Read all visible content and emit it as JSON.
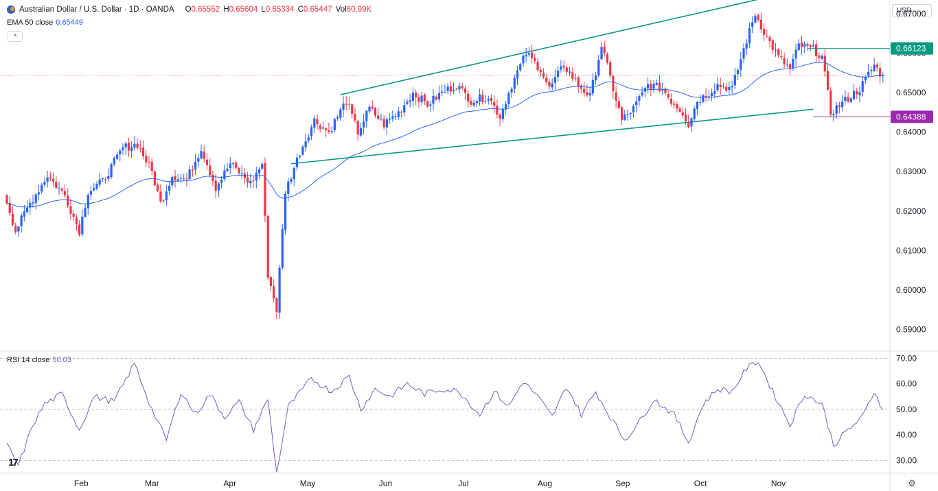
{
  "header": {
    "symbol": "Australian Dollar / U.S. Dollar · 1D · OANDA",
    "open_label": "O",
    "open": "0.65552",
    "high_label": "H",
    "high": "0.65604",
    "low_label": "L",
    "low": "0.65334",
    "close_label": "C",
    "close": "0.65447",
    "vol_label": "Vol",
    "vol": "60.99K"
  },
  "indicators": {
    "ema_label": "EMA 50 close",
    "ema_value": "0.65449",
    "rsi_label": "RSI 14 close",
    "rsi_value": "50.03"
  },
  "controls": {
    "currency": "USD",
    "collapse": "^"
  },
  "colors": {
    "up": "#2962ff",
    "down": "#f23645",
    "ema": "#2962ff",
    "rsi": "#7e57c2",
    "channel": "#089981",
    "resistance_tag": "#089981",
    "support_tag": "#9c27b0"
  },
  "icons": {
    "logo": "tradingview-logo-icon",
    "settings": "gear-icon"
  },
  "tv_logo_text": "17",
  "chart_data": [
    {
      "type": "candlestick",
      "grid": false,
      "price_axis": [
        "0.67000",
        "0.66000",
        "0.65000",
        "0.64000",
        "0.63000",
        "0.62000",
        "0.61000",
        "0.60000",
        "0.59000"
      ],
      "ylim": [
        0.5845,
        0.6735
      ],
      "time_axis": [
        "Feb",
        "Mar",
        "Apr",
        "May",
        "Jun",
        "Jul",
        "Aug",
        "Sep",
        "Oct",
        "Nov"
      ],
      "last_close": 0.65447,
      "resistance": {
        "value": 0.66123,
        "label": "0.66123"
      },
      "support": {
        "value": 0.64388,
        "label": "0.64388"
      },
      "channel": {
        "upper": [
          {
            "x": 115,
            "y": 0.6495
          },
          {
            "x": 276,
            "y": 0.6765
          }
        ],
        "lower": [
          {
            "x": 98,
            "y": 0.632
          },
          {
            "x": 278,
            "y": 0.6458
          }
        ]
      },
      "anchors": [
        {
          "i": 0,
          "p": 0.6225
        },
        {
          "i": 3,
          "p": 0.615
        },
        {
          "i": 8,
          "p": 0.622
        },
        {
          "i": 14,
          "p": 0.629
        },
        {
          "i": 20,
          "p": 0.624
        },
        {
          "i": 25,
          "p": 0.615
        },
        {
          "i": 28,
          "p": 0.625
        },
        {
          "i": 33,
          "p": 0.6275
        },
        {
          "i": 40,
          "p": 0.636
        },
        {
          "i": 45,
          "p": 0.637
        },
        {
          "i": 50,
          "p": 0.63
        },
        {
          "i": 53,
          "p": 0.622
        },
        {
          "i": 57,
          "p": 0.629
        },
        {
          "i": 62,
          "p": 0.628
        },
        {
          "i": 67,
          "p": 0.636
        },
        {
          "i": 72,
          "p": 0.626
        },
        {
          "i": 77,
          "p": 0.632
        },
        {
          "i": 84,
          "p": 0.627
        },
        {
          "i": 88,
          "p": 0.632
        },
        {
          "i": 90,
          "p": 0.604
        },
        {
          "i": 93,
          "p": 0.595
        },
        {
          "i": 96,
          "p": 0.625
        },
        {
          "i": 101,
          "p": 0.635
        },
        {
          "i": 106,
          "p": 0.643
        },
        {
          "i": 111,
          "p": 0.64
        },
        {
          "i": 117,
          "p": 0.648
        },
        {
          "i": 121,
          "p": 0.64
        },
        {
          "i": 125,
          "p": 0.646
        },
        {
          "i": 130,
          "p": 0.642
        },
        {
          "i": 135,
          "p": 0.645
        },
        {
          "i": 140,
          "p": 0.65
        },
        {
          "i": 145,
          "p": 0.647
        },
        {
          "i": 150,
          "p": 0.65
        },
        {
          "i": 155,
          "p": 0.652
        },
        {
          "i": 160,
          "p": 0.648
        },
        {
          "i": 166,
          "p": 0.649
        },
        {
          "i": 170,
          "p": 0.644
        },
        {
          "i": 174,
          "p": 0.652
        },
        {
          "i": 179,
          "p": 0.66
        },
        {
          "i": 184,
          "p": 0.656
        },
        {
          "i": 187,
          "p": 0.651
        },
        {
          "i": 192,
          "p": 0.657
        },
        {
          "i": 197,
          "p": 0.652
        },
        {
          "i": 201,
          "p": 0.649
        },
        {
          "i": 205,
          "p": 0.662
        },
        {
          "i": 209,
          "p": 0.651
        },
        {
          "i": 212,
          "p": 0.643
        },
        {
          "i": 216,
          "p": 0.646
        },
        {
          "i": 221,
          "p": 0.652
        },
        {
          "i": 226,
          "p": 0.651
        },
        {
          "i": 229,
          "p": 0.648
        },
        {
          "i": 233,
          "p": 0.645
        },
        {
          "i": 235,
          "p": 0.642
        },
        {
          "i": 238,
          "p": 0.648
        },
        {
          "i": 242,
          "p": 0.65
        },
        {
          "i": 245,
          "p": 0.652
        },
        {
          "i": 250,
          "p": 0.651
        },
        {
          "i": 254,
          "p": 0.661
        },
        {
          "i": 258,
          "p": 0.67
        },
        {
          "i": 262,
          "p": 0.664
        },
        {
          "i": 266,
          "p": 0.659
        },
        {
          "i": 270,
          "p": 0.656
        },
        {
          "i": 273,
          "p": 0.662
        },
        {
          "i": 278,
          "p": 0.661
        },
        {
          "i": 281,
          "p": 0.659
        },
        {
          "i": 284,
          "p": 0.645
        },
        {
          "i": 289,
          "p": 0.648
        },
        {
          "i": 294,
          "p": 0.651
        },
        {
          "i": 299,
          "p": 0.657
        },
        {
          "i": 301,
          "p": 0.655
        },
        {
          "i": 302,
          "p": 0.65447
        }
      ]
    },
    {
      "type": "line",
      "name": "RSI 14 close",
      "grid": false,
      "levels": [
        "70.00",
        "60.00",
        "50.00",
        "40.00",
        "30.00"
      ],
      "ylim": [
        25,
        72
      ],
      "anchors": [
        {
          "i": 0,
          "v": 36
        },
        {
          "i": 4,
          "v": 28
        },
        {
          "i": 9,
          "v": 44
        },
        {
          "i": 13,
          "v": 52
        },
        {
          "i": 19,
          "v": 56
        },
        {
          "i": 25,
          "v": 42
        },
        {
          "i": 30,
          "v": 55
        },
        {
          "i": 37,
          "v": 53
        },
        {
          "i": 44,
          "v": 68
        },
        {
          "i": 50,
          "v": 50
        },
        {
          "i": 55,
          "v": 38
        },
        {
          "i": 60,
          "v": 57
        },
        {
          "i": 65,
          "v": 48
        },
        {
          "i": 70,
          "v": 56
        },
        {
          "i": 75,
          "v": 47
        },
        {
          "i": 80,
          "v": 53
        },
        {
          "i": 85,
          "v": 42
        },
        {
          "i": 90,
          "v": 54
        },
        {
          "i": 93,
          "v": 25
        },
        {
          "i": 97,
          "v": 51
        },
        {
          "i": 105,
          "v": 62
        },
        {
          "i": 112,
          "v": 57
        },
        {
          "i": 118,
          "v": 63
        },
        {
          "i": 122,
          "v": 50
        },
        {
          "i": 127,
          "v": 58
        },
        {
          "i": 132,
          "v": 55
        },
        {
          "i": 138,
          "v": 60
        },
        {
          "i": 144,
          "v": 56
        },
        {
          "i": 150,
          "v": 58
        },
        {
          "i": 156,
          "v": 57
        },
        {
          "i": 163,
          "v": 48
        },
        {
          "i": 168,
          "v": 57
        },
        {
          "i": 173,
          "v": 51
        },
        {
          "i": 178,
          "v": 61
        },
        {
          "i": 183,
          "v": 55
        },
        {
          "i": 188,
          "v": 47
        },
        {
          "i": 193,
          "v": 59
        },
        {
          "i": 198,
          "v": 48
        },
        {
          "i": 203,
          "v": 57
        },
        {
          "i": 208,
          "v": 47
        },
        {
          "i": 213,
          "v": 38
        },
        {
          "i": 218,
          "v": 45
        },
        {
          "i": 223,
          "v": 54
        },
        {
          "i": 230,
          "v": 48
        },
        {
          "i": 235,
          "v": 37
        },
        {
          "i": 240,
          "v": 52
        },
        {
          "i": 245,
          "v": 58
        },
        {
          "i": 250,
          "v": 57
        },
        {
          "i": 255,
          "v": 66
        },
        {
          "i": 259,
          "v": 69
        },
        {
          "i": 264,
          "v": 57
        },
        {
          "i": 270,
          "v": 44
        },
        {
          "i": 275,
          "v": 56
        },
        {
          "i": 281,
          "v": 52
        },
        {
          "i": 285,
          "v": 36
        },
        {
          "i": 290,
          "v": 42
        },
        {
          "i": 295,
          "v": 47
        },
        {
          "i": 299,
          "v": 57
        },
        {
          "i": 302,
          "v": 50.03
        }
      ]
    }
  ]
}
